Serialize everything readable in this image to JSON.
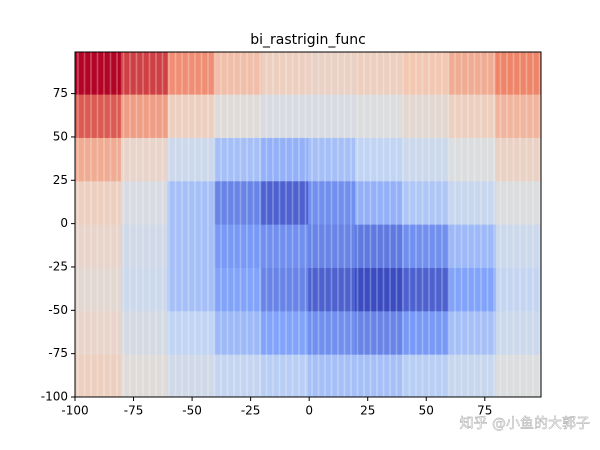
{
  "chart_data": {
    "type": "heatmap",
    "title": "bi_rastrigin_func",
    "x": [
      -90,
      -70,
      -50,
      -30,
      -10,
      10,
      30,
      50,
      70,
      90
    ],
    "y": [
      -87.5,
      -62.5,
      -37.5,
      -12.5,
      12.5,
      37.5,
      62.5,
      87.5
    ],
    "z": [
      [
        62,
        52,
        44,
        38,
        34,
        30,
        30,
        34,
        40,
        50
      ],
      [
        58,
        46,
        36,
        28,
        22,
        18,
        16,
        20,
        30,
        42
      ],
      [
        55,
        42,
        30,
        22,
        16,
        10,
        6,
        10,
        22,
        38
      ],
      [
        58,
        44,
        30,
        20,
        18,
        16,
        14,
        18,
        28,
        42
      ],
      [
        62,
        48,
        30,
        16,
        10,
        18,
        26,
        32,
        40,
        50
      ],
      [
        72,
        58,
        42,
        30,
        26,
        30,
        36,
        42,
        50,
        60
      ],
      [
        85,
        75,
        62,
        52,
        48,
        48,
        50,
        55,
        62,
        70
      ],
      [
        95,
        88,
        78,
        68,
        62,
        60,
        62,
        66,
        72,
        80
      ]
    ],
    "colormap": "coolwarm",
    "xlim": [
      -100,
      99
    ],
    "ylim": [
      -100,
      99
    ],
    "xticks": [
      -100,
      -75,
      -50,
      -25,
      0,
      25,
      50,
      75
    ],
    "yticks": [
      -100,
      -75,
      -50,
      -25,
      0,
      25,
      50,
      75
    ],
    "watermark": "知乎 @小鱼的大郭子"
  }
}
